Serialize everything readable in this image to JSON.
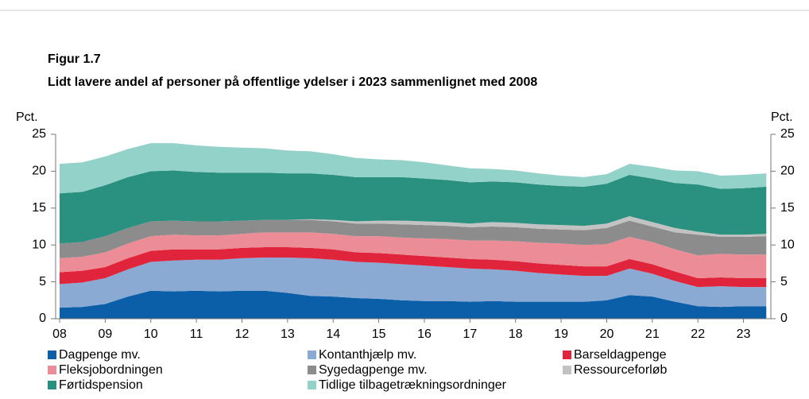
{
  "chart_data": {
    "type": "stacked_area",
    "title": "Figur 1.7",
    "subtitle": "Lidt lavere andel af personer på offentlige ydelser i 2023 sammenlignet med 2008",
    "ylabel": "Pct.",
    "y2label": "Pct.",
    "x": [
      2008,
      2008.5,
      2009,
      2009.5,
      2010,
      2010.5,
      2011,
      2011.5,
      2012,
      2012.5,
      2013,
      2013.5,
      2014,
      2014.5,
      2015,
      2015.5,
      2016,
      2016.5,
      2017,
      2017.5,
      2018,
      2018.5,
      2019,
      2019.5,
      2020,
      2020.5,
      2021,
      2021.5,
      2022,
      2022.5,
      2023,
      2023.5
    ],
    "xlim": [
      2008,
      2023.6
    ],
    "xticks": [
      {
        "value": 2008,
        "label": "08"
      },
      {
        "value": 2009,
        "label": "09"
      },
      {
        "value": 2010,
        "label": "10"
      },
      {
        "value": 2011,
        "label": "11"
      },
      {
        "value": 2012,
        "label": "12"
      },
      {
        "value": 2013,
        "label": "13"
      },
      {
        "value": 2014,
        "label": "14"
      },
      {
        "value": 2015,
        "label": "15"
      },
      {
        "value": 2016,
        "label": "16"
      },
      {
        "value": 2017,
        "label": "17"
      },
      {
        "value": 2018,
        "label": "18"
      },
      {
        "value": 2019,
        "label": "19"
      },
      {
        "value": 2020,
        "label": "20"
      },
      {
        "value": 2021,
        "label": "21"
      },
      {
        "value": 2022,
        "label": "22"
      },
      {
        "value": 2023,
        "label": "23"
      }
    ],
    "ylim": [
      0,
      25
    ],
    "yticks": [
      0,
      5,
      10,
      15,
      20,
      25
    ],
    "y2lim": [
      0,
      25
    ],
    "y2ticks": [
      0,
      5,
      10,
      15,
      20,
      25
    ],
    "series": [
      {
        "name": "Dagpenge mv.",
        "color": "#0b5ea8",
        "values": [
          1.5,
          1.6,
          2.0,
          3.0,
          3.8,
          3.7,
          3.8,
          3.7,
          3.8,
          3.8,
          3.5,
          3.1,
          3.0,
          2.8,
          2.7,
          2.5,
          2.4,
          2.4,
          2.3,
          2.4,
          2.3,
          2.3,
          2.3,
          2.3,
          2.5,
          3.2,
          3.0,
          2.3,
          1.7,
          1.6,
          1.7,
          1.7
        ]
      },
      {
        "name": "Kontanthjælp mv.",
        "color": "#8aa9d3",
        "values": [
          3.2,
          3.3,
          3.5,
          3.7,
          3.9,
          4.2,
          4.2,
          4.3,
          4.4,
          4.5,
          4.8,
          5.1,
          5.0,
          4.9,
          4.9,
          4.9,
          4.8,
          4.6,
          4.5,
          4.3,
          4.2,
          3.9,
          3.7,
          3.5,
          3.3,
          3.6,
          3.1,
          2.8,
          2.6,
          2.8,
          2.6,
          2.6
        ]
      },
      {
        "name": "Barseldagpenge",
        "color": "#e0243c",
        "values": [
          1.6,
          1.6,
          1.5,
          1.5,
          1.5,
          1.5,
          1.4,
          1.4,
          1.4,
          1.4,
          1.4,
          1.4,
          1.4,
          1.3,
          1.3,
          1.3,
          1.3,
          1.3,
          1.3,
          1.3,
          1.3,
          1.3,
          1.3,
          1.3,
          1.3,
          1.3,
          1.3,
          1.3,
          1.2,
          1.2,
          1.2,
          1.2
        ]
      },
      {
        "name": "Fleksjobordningen",
        "color": "#eb8c96",
        "values": [
          1.9,
          1.9,
          2.0,
          2.0,
          2.0,
          2.0,
          1.9,
          1.9,
          1.9,
          2.0,
          2.0,
          2.1,
          2.1,
          2.2,
          2.3,
          2.3,
          2.4,
          2.5,
          2.5,
          2.6,
          2.7,
          2.8,
          2.9,
          2.9,
          3.0,
          3.0,
          3.0,
          3.0,
          3.1,
          3.2,
          3.2,
          3.2
        ]
      },
      {
        "name": "Sygedagpenge mv.",
        "color": "#8c8c8c",
        "values": [
          2.0,
          2.0,
          2.2,
          2.1,
          2.0,
          1.9,
          1.9,
          1.9,
          1.8,
          1.7,
          1.7,
          1.7,
          1.7,
          1.7,
          1.7,
          1.8,
          1.8,
          1.8,
          1.8,
          1.9,
          1.9,
          1.9,
          1.9,
          2.0,
          2.2,
          2.2,
          2.1,
          2.3,
          2.8,
          2.3,
          2.4,
          2.5
        ]
      },
      {
        "name": "Ressourceforløb",
        "color": "#c2c2c2",
        "values": [
          0,
          0,
          0,
          0,
          0,
          0,
          0,
          0,
          0,
          0,
          0,
          0.1,
          0.2,
          0.3,
          0.4,
          0.5,
          0.5,
          0.5,
          0.5,
          0.6,
          0.6,
          0.6,
          0.6,
          0.6,
          0.6,
          0.6,
          0.6,
          0.6,
          0.4,
          0.3,
          0.3,
          0.3
        ]
      },
      {
        "name": "Førtidspension",
        "color": "#2a9080",
        "values": [
          6.8,
          6.8,
          6.9,
          6.9,
          6.8,
          6.8,
          6.7,
          6.6,
          6.5,
          6.4,
          6.3,
          6.2,
          6.1,
          6.0,
          5.9,
          5.9,
          5.8,
          5.7,
          5.6,
          5.5,
          5.5,
          5.4,
          5.3,
          5.3,
          5.4,
          5.6,
          5.9,
          6.1,
          6.4,
          6.2,
          6.3,
          6.4
        ]
      },
      {
        "name": "Tidlige tilbagetrækningsordninger",
        "color": "#93d2c8",
        "values": [
          4.0,
          4.0,
          3.9,
          3.8,
          3.8,
          3.7,
          3.6,
          3.5,
          3.4,
          3.3,
          3.1,
          3.0,
          2.8,
          2.6,
          2.4,
          2.3,
          2.2,
          2.0,
          1.9,
          1.7,
          1.6,
          1.5,
          1.4,
          1.3,
          1.3,
          1.5,
          1.6,
          1.7,
          1.8,
          1.8,
          1.8,
          1.8
        ]
      }
    ]
  }
}
